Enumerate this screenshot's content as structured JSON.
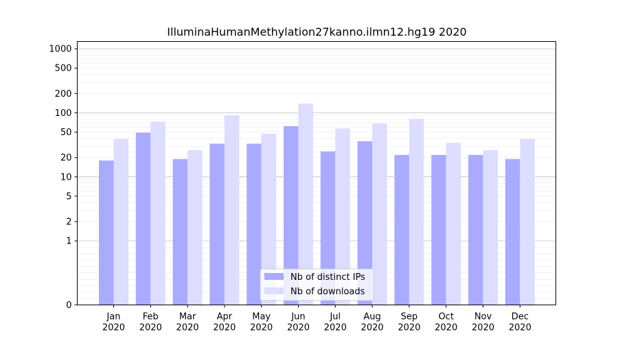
{
  "chart_data": {
    "type": "bar",
    "title": "IlluminaHumanMethylation27kanno.ilmn12.hg19 2020",
    "xlabel": "",
    "ylabel": "",
    "y_scale": "symlog",
    "ylim": [
      0,
      1300
    ],
    "y_ticks": [
      0,
      1,
      2,
      5,
      10,
      20,
      50,
      100,
      200,
      500,
      1000
    ],
    "categories": [
      "Jan\n2020",
      "Feb\n2020",
      "Mar\n2020",
      "Apr\n2020",
      "May\n2020",
      "Jun\n2020",
      "Jul\n2020",
      "Aug\n2020",
      "Sep\n2020",
      "Oct\n2020",
      "Nov\n2020",
      "Dec\n2020"
    ],
    "series": [
      {
        "name": "Nb of distinct IPs",
        "color": "#aaaaff",
        "values": [
          18,
          49,
          19,
          33,
          33,
          62,
          25,
          36,
          22,
          22,
          22,
          19
        ]
      },
      {
        "name": "Nb of downloads",
        "color": "#ddddff",
        "values": [
          39,
          73,
          26,
          92,
          47,
          140,
          57,
          68,
          80,
          34,
          26,
          39
        ]
      }
    ],
    "grid": true,
    "legend": "bottom-center"
  }
}
